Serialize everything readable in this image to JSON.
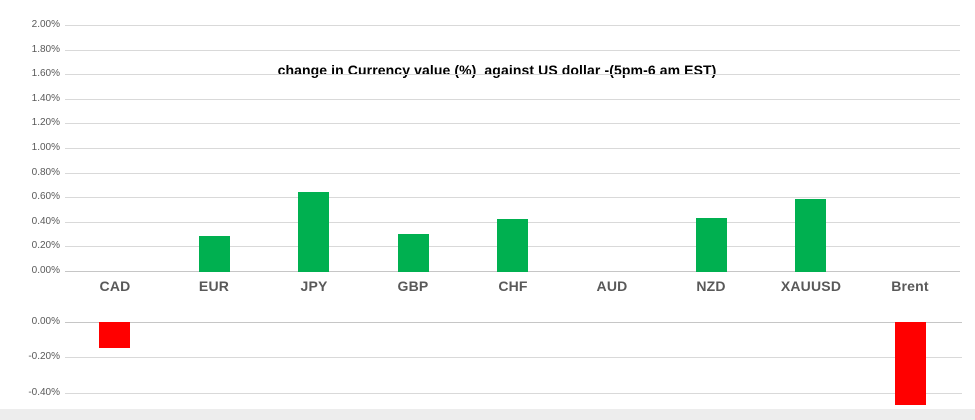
{
  "window": {
    "background": "#ffffff"
  },
  "chart_data": {
    "type": "bar",
    "title": "change in Currency value (%)  against US dollar -(5pm-6 am EST)",
    "categories": [
      "CAD",
      "EUR",
      "JPY",
      "GBP",
      "CHF",
      "AUD",
      "NZD",
      "XAUUSD",
      "Brent"
    ],
    "values": [
      -0.15,
      0.29,
      0.65,
      0.31,
      0.43,
      0,
      0.44,
      0.59,
      -0.47
    ],
    "value_unit": "%",
    "grid": true,
    "legend": false,
    "upper_axis": {
      "max": 2.0,
      "min": 0.0,
      "step": 0.2,
      "tick_labels": [
        "2.00%",
        "1.80%",
        "1.60%",
        "1.40%",
        "1.20%",
        "1.00%",
        "0.80%",
        "0.60%",
        "0.40%",
        "0.20%",
        "0.00%"
      ]
    },
    "lower_axis": {
      "max": 0.0,
      "min": -0.4,
      "step": 0.2,
      "tick_labels": [
        "0.00%",
        "-0.20%",
        "-0.40%"
      ]
    },
    "colors": {
      "positive_bar": "#00b050",
      "negative_bar": "#ff0000",
      "gridline": "#d9d9d9",
      "zero_line": "#c6c6c6",
      "tick_label": "#595959",
      "category_label": "#595959",
      "title": "#000000"
    }
  }
}
